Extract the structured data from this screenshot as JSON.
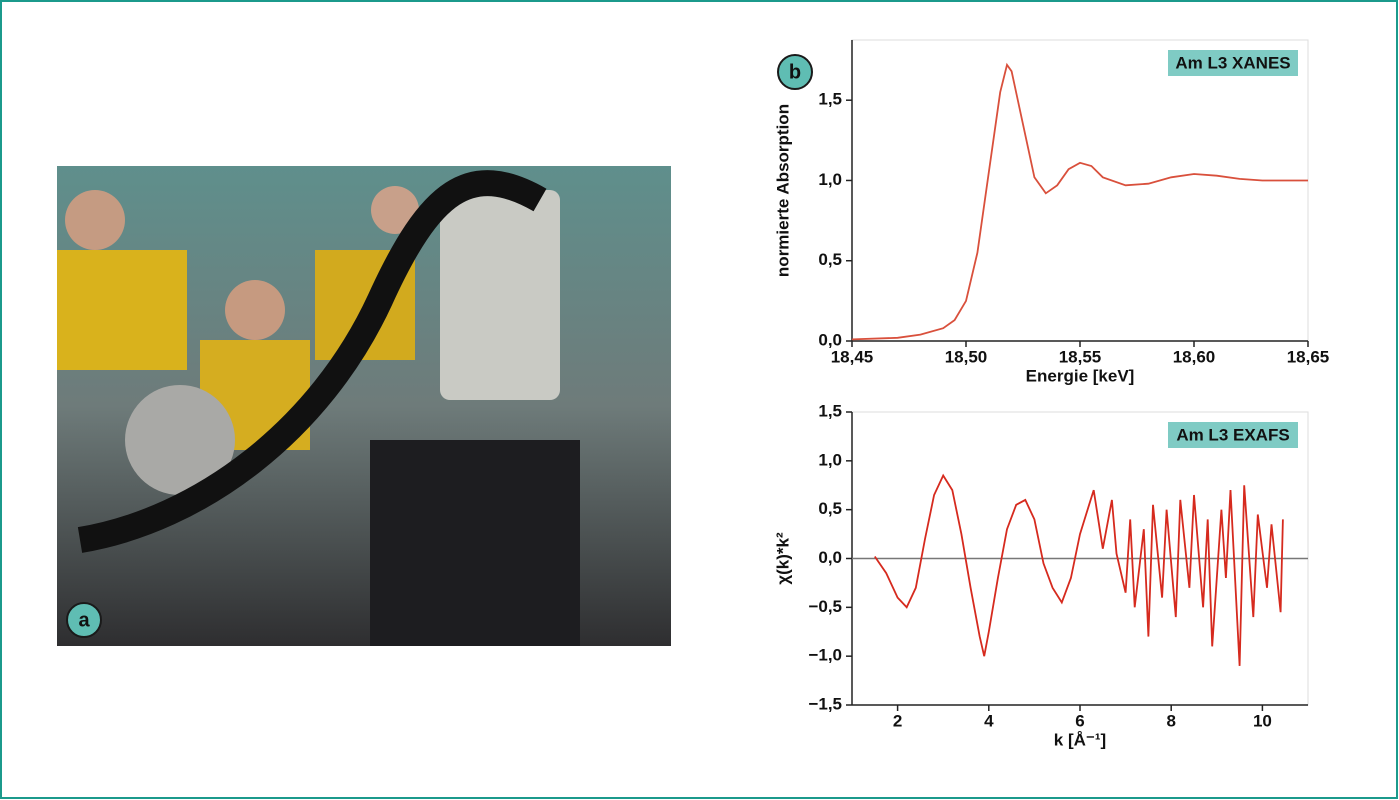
{
  "photo_label": "a",
  "chart_label": "b",
  "chart_data": [
    {
      "type": "line",
      "annotation": "Am L3 XANES",
      "xlabel": "Energie [keV]",
      "ylabel": "normierte Absorption",
      "color": "#d9503c",
      "x": [
        18.45,
        18.47,
        18.48,
        18.49,
        18.495,
        18.5,
        18.505,
        18.51,
        18.515,
        18.518,
        18.52,
        18.525,
        18.53,
        18.535,
        18.54,
        18.545,
        18.55,
        18.555,
        18.56,
        18.57,
        18.58,
        18.59,
        18.6,
        18.61,
        18.62,
        18.63,
        18.64,
        18.65
      ],
      "values": [
        0.01,
        0.02,
        0.04,
        0.08,
        0.13,
        0.25,
        0.55,
        1.05,
        1.55,
        1.72,
        1.68,
        1.35,
        1.02,
        0.92,
        0.97,
        1.07,
        1.11,
        1.09,
        1.02,
        0.97,
        0.98,
        1.02,
        1.04,
        1.03,
        1.01,
        1.0,
        1.0,
        1.0
      ],
      "xlim": [
        18.45,
        18.65
      ],
      "ylim": [
        0,
        1.875
      ],
      "xticks": [
        {
          "value": 18.45,
          "label": "18,45"
        },
        {
          "value": 18.5,
          "label": "18,50"
        },
        {
          "value": 18.55,
          "label": "18,55"
        },
        {
          "value": 18.6,
          "label": "18,60"
        },
        {
          "value": 18.65,
          "label": "18,65"
        }
      ],
      "yticks": [
        {
          "value": 0,
          "label": "0,0"
        },
        {
          "value": 0.5,
          "label": "0,5"
        },
        {
          "value": 1,
          "label": "1,0"
        },
        {
          "value": 1.5,
          "label": "1,5"
        }
      ]
    },
    {
      "type": "line",
      "annotation": "Am L3 EXAFS",
      "xlabel": "k [Å⁻¹]",
      "ylabel": "χ(k)*k²",
      "color": "#d62a1e",
      "hline": 0,
      "x": [
        1.5,
        1.75,
        2.0,
        2.2,
        2.4,
        2.6,
        2.8,
        3.0,
        3.2,
        3.4,
        3.6,
        3.8,
        3.9,
        4.0,
        4.2,
        4.4,
        4.6,
        4.8,
        5.0,
        5.2,
        5.4,
        5.6,
        5.8,
        6.0,
        6.2,
        6.3,
        6.5,
        6.7,
        6.8,
        7.0,
        7.1,
        7.2,
        7.4,
        7.5,
        7.6,
        7.8,
        7.9,
        8.1,
        8.2,
        8.4,
        8.5,
        8.7,
        8.8,
        8.9,
        9.1,
        9.2,
        9.3,
        9.5,
        9.6,
        9.8,
        9.9,
        10.1,
        10.2,
        10.4,
        10.45
      ],
      "values": [
        0.02,
        -0.15,
        -0.4,
        -0.5,
        -0.3,
        0.2,
        0.65,
        0.85,
        0.7,
        0.25,
        -0.3,
        -0.8,
        -1.0,
        -0.75,
        -0.2,
        0.3,
        0.55,
        0.6,
        0.4,
        -0.05,
        -0.3,
        -0.45,
        -0.2,
        0.25,
        0.55,
        0.7,
        0.1,
        0.6,
        0.05,
        -0.35,
        0.4,
        -0.5,
        0.3,
        -0.8,
        0.55,
        -0.4,
        0.5,
        -0.6,
        0.6,
        -0.3,
        0.65,
        -0.5,
        0.4,
        -0.9,
        0.5,
        -0.2,
        0.7,
        -1.1,
        0.75,
        -0.6,
        0.45,
        -0.3,
        0.35,
        -0.55,
        0.4
      ],
      "xlim": [
        1,
        11
      ],
      "ylim": [
        -1.5,
        1.5
      ],
      "xticks": [
        2,
        4,
        6,
        8,
        10
      ],
      "yticks": [
        {
          "value": -1.5,
          "label": "−1,5"
        },
        {
          "value": -1,
          "label": "−1,0"
        },
        {
          "value": -0.5,
          "label": "−0,5"
        },
        {
          "value": 0,
          "label": "0,0"
        },
        {
          "value": 0.5,
          "label": "0,5"
        },
        {
          "value": 1,
          "label": "1,0"
        },
        {
          "value": 1.5,
          "label": "1,5"
        }
      ]
    }
  ]
}
